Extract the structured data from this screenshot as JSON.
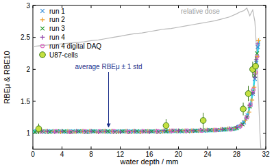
{
  "chart_data": {
    "type": "scatter",
    "x_label": "water depth / mm",
    "y_label": "RBEμ & RBE10",
    "xlim": [
      0,
      32
    ],
    "ylim": [
      0.75,
      3
    ],
    "xticks": [
      0,
      4,
      8,
      12,
      16,
      20,
      24,
      28,
      32
    ],
    "yticks": [
      1,
      1.5,
      2,
      2.5,
      3
    ],
    "grid": false,
    "legend": "upper left",
    "series": [
      {
        "name": "run 1",
        "color": "#3b8fd9",
        "marker": "x",
        "x": [
          0.5,
          1.5,
          2.5,
          3.5,
          4.5,
          5.5,
          6.5,
          7.5,
          8.5,
          9.5,
          10.5,
          11.5,
          12.5,
          13.5,
          14.5,
          15.5,
          16.5,
          17.5,
          18.5,
          19.5,
          20.5,
          21.5,
          22.5,
          23.5,
          24.5,
          25.5,
          26.5,
          27.5,
          28.3,
          29.0,
          29.5,
          29.9,
          30.2,
          30.5,
          30.7,
          30.9
        ],
        "values": [
          1.03,
          1.02,
          1.03,
          1.03,
          1.02,
          1.03,
          1.03,
          1.02,
          1.03,
          1.03,
          1.02,
          1.03,
          1.03,
          1.03,
          1.02,
          1.03,
          1.03,
          1.03,
          1.03,
          1.04,
          1.03,
          1.04,
          1.04,
          1.04,
          1.05,
          1.05,
          1.06,
          1.07,
          1.1,
          1.17,
          1.28,
          1.45,
          1.62,
          1.85,
          2.1,
          2.35
        ]
      },
      {
        "name": "run 2",
        "color": "#f0a030",
        "marker": "plus",
        "x": [
          0.8,
          1.8,
          2.8,
          3.8,
          4.8,
          5.8,
          6.8,
          7.8,
          8.8,
          9.8,
          10.8,
          11.8,
          12.8,
          13.8,
          14.8,
          15.8,
          16.8,
          17.8,
          18.8,
          19.8,
          20.8,
          21.8,
          22.8,
          23.8,
          24.8,
          25.8,
          26.8,
          27.8,
          28.6,
          29.2,
          29.7,
          30.1,
          30.4,
          30.6,
          30.8,
          31.0
        ],
        "values": [
          1.02,
          1.03,
          1.03,
          1.02,
          1.03,
          1.02,
          1.03,
          1.03,
          1.02,
          1.03,
          1.03,
          1.02,
          1.03,
          1.03,
          1.02,
          1.03,
          1.03,
          1.03,
          1.04,
          1.03,
          1.04,
          1.04,
          1.04,
          1.05,
          1.05,
          1.06,
          1.07,
          1.08,
          1.12,
          1.2,
          1.33,
          1.52,
          1.72,
          1.95,
          2.2,
          2.45
        ]
      },
      {
        "name": "run 3",
        "color": "#2a9a2a",
        "marker": "x",
        "x": [
          0.3,
          1.3,
          2.3,
          3.3,
          4.3,
          5.3,
          6.3,
          7.3,
          8.3,
          9.3,
          10.3,
          11.3,
          12.3,
          13.3,
          14.3,
          15.3,
          16.3,
          17.3,
          18.3,
          19.3,
          20.3,
          21.3,
          22.3,
          23.3,
          24.3,
          25.3,
          26.3,
          27.3,
          28.0,
          28.8,
          29.4,
          29.8,
          30.2,
          30.5,
          30.8
        ],
        "values": [
          1.02,
          1.03,
          1.02,
          1.03,
          1.03,
          1.02,
          1.03,
          1.02,
          1.03,
          1.03,
          1.03,
          1.02,
          1.03,
          1.02,
          1.03,
          1.03,
          1.03,
          1.02,
          1.03,
          1.04,
          1.04,
          1.03,
          1.04,
          1.05,
          1.05,
          1.05,
          1.06,
          1.07,
          1.08,
          1.14,
          1.25,
          1.42,
          1.65,
          1.9,
          2.25
        ]
      },
      {
        "name": "run 4",
        "color": "#9040a8",
        "marker": "plus",
        "x": [
          1,
          2,
          3,
          4,
          5,
          6,
          7,
          8,
          9,
          10,
          11,
          12,
          13,
          14,
          15,
          16,
          17,
          18,
          19,
          20,
          21,
          22,
          23,
          24,
          25,
          26,
          27,
          28,
          28.7,
          29.3,
          29.8,
          30.2,
          30.5,
          30.7,
          30.9
        ],
        "values": [
          1.03,
          1.03,
          1.02,
          1.03,
          1.02,
          1.03,
          1.03,
          1.03,
          1.02,
          1.03,
          1.03,
          1.02,
          1.03,
          1.03,
          1.03,
          1.02,
          1.03,
          1.04,
          1.03,
          1.04,
          1.04,
          1.04,
          1.05,
          1.05,
          1.05,
          1.06,
          1.07,
          1.09,
          1.13,
          1.24,
          1.43,
          1.63,
          1.88,
          2.15,
          2.4
        ]
      },
      {
        "name": "run 4 digital DAQ",
        "color": "#e066c4",
        "marker": "circle",
        "x": [
          1.2,
          3.2,
          5.2,
          7.2,
          9.2,
          11.2,
          13.2,
          15.2,
          17.2,
          19.2,
          21.2,
          23.2,
          25.2,
          27.2,
          28.5,
          29.4,
          29.9,
          30.3,
          30.6,
          30.8
        ],
        "values": [
          1.03,
          1.03,
          1.02,
          1.03,
          1.03,
          1.03,
          1.02,
          1.03,
          1.03,
          1.04,
          1.04,
          1.04,
          1.05,
          1.06,
          1.11,
          1.25,
          1.45,
          1.68,
          1.95,
          2.2
        ]
      },
      {
        "name": "U87-cells",
        "color": "#c4e040",
        "marker": "dot",
        "x": [
          0.8,
          18.3,
          23.4,
          28.9,
          29.6,
          30.2,
          30.6
        ],
        "values": [
          1.07,
          1.12,
          1.2,
          1.38,
          1.62,
          2.0,
          2.05
        ],
        "errors": [
          0.08,
          0.1,
          0.12,
          0.1,
          0.12,
          0.12,
          0.15
        ]
      }
    ],
    "band": {
      "color": "#33d6e6",
      "x": [
        0,
        2,
        4,
        6,
        8,
        10,
        12,
        14,
        16,
        18,
        20,
        22,
        24,
        26,
        27,
        28,
        28.5,
        29,
        29.5,
        30,
        30.3,
        30.6,
        30.9,
        31.1
      ],
      "values": [
        1.03,
        1.03,
        1.03,
        1.03,
        1.03,
        1.03,
        1.03,
        1.03,
        1.03,
        1.03,
        1.03,
        1.04,
        1.04,
        1.05,
        1.06,
        1.08,
        1.12,
        1.17,
        1.28,
        1.5,
        1.7,
        2.0,
        2.3,
        2.45
      ],
      "errors": [
        0.03,
        0.03,
        0.03,
        0.03,
        0.03,
        0.03,
        0.03,
        0.03,
        0.03,
        0.03,
        0.03,
        0.03,
        0.03,
        0.03,
        0.03,
        0.04,
        0.04,
        0.04,
        0.05,
        0.05,
        0.06,
        0.06,
        0.07,
        0.07
      ]
    },
    "dose": {
      "name": "relative dose",
      "color": "#b8b8b8",
      "x": [
        0,
        1,
        2,
        3,
        4,
        5,
        6,
        7,
        8,
        9,
        10,
        11,
        12,
        13,
        14,
        15,
        16,
        17,
        18,
        19,
        20,
        21,
        22,
        23,
        24,
        25,
        26,
        27,
        28,
        28.5,
        29,
        29.4,
        29.8,
        30.2,
        30.5,
        30.8,
        31.0,
        31.2,
        31.4
      ],
      "values": [
        2.36,
        2.37,
        2.38,
        2.39,
        2.4,
        2.41,
        2.42,
        2.43,
        2.45,
        2.46,
        2.48,
        2.5,
        2.52,
        2.54,
        2.56,
        2.57,
        2.59,
        2.61,
        2.63,
        2.64,
        2.66,
        2.68,
        2.7,
        2.72,
        2.74,
        2.76,
        2.79,
        2.82,
        2.87,
        2.9,
        2.92,
        2.96,
        2.84,
        2.93,
        2.75,
        2.2,
        1.6,
        1.0,
        0.6
      ]
    },
    "annotation": {
      "text": "average RBEμ ± 1 std",
      "x": 10.4
    }
  }
}
